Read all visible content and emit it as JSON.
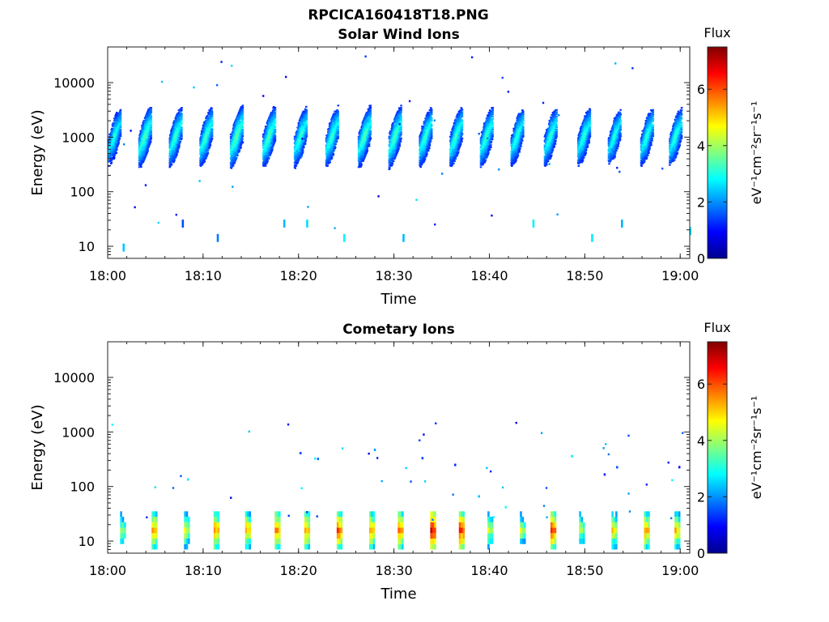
{
  "figure_title": "RPCICA160418T18.PNG",
  "colormap": [
    "#00008f",
    "#0000ff",
    "#0080ff",
    "#00ffff",
    "#80ff80",
    "#ffff00",
    "#ff8000",
    "#ff0000",
    "#800000"
  ],
  "chart_data": [
    {
      "type": "heatmap",
      "title": "Solar Wind Ions",
      "xlabel": "Time",
      "ylabel": "Energy (eV)",
      "x_scale": "time",
      "y_scale": "log",
      "xlim": [
        "18:00",
        "19:01"
      ],
      "ylim": [
        6,
        45000
      ],
      "x_ticks": [
        "18:00",
        "18:10",
        "18:20",
        "18:30",
        "18:40",
        "18:50",
        "19:00"
      ],
      "y_ticks": [
        10,
        100,
        1000,
        10000
      ],
      "y_tick_labels": [
        "10",
        "100",
        "1000",
        "10000"
      ],
      "colorbar": {
        "title": "Flux",
        "label": "eV⁻¹cm⁻²sr⁻¹s⁻¹",
        "range": [
          0,
          7.5
        ],
        "ticks": [
          0,
          2,
          4,
          6
        ]
      },
      "peaks": [
        {
          "t": 0.6,
          "flux": 3.2
        },
        {
          "t": 3.8,
          "flux": 3.5
        },
        {
          "t": 7.0,
          "flux": 3.4
        },
        {
          "t": 10.2,
          "flux": 3.4
        },
        {
          "t": 13.4,
          "flux": 3.6
        },
        {
          "t": 16.8,
          "flux": 3.5
        },
        {
          "t": 20.1,
          "flux": 3.4
        },
        {
          "t": 23.4,
          "flux": 3.4
        },
        {
          "t": 26.8,
          "flux": 3.5
        },
        {
          "t": 30.0,
          "flux": 3.5
        },
        {
          "t": 33.2,
          "flux": 3.4
        },
        {
          "t": 36.4,
          "flux": 3.4
        },
        {
          "t": 39.6,
          "flux": 3.4
        },
        {
          "t": 42.8,
          "flux": 3.3
        },
        {
          "t": 46.3,
          "flux": 3.3
        },
        {
          "t": 49.8,
          "flux": 3.3
        },
        {
          "t": 53.0,
          "flux": 3.2
        },
        {
          "t": 56.4,
          "flux": 3.3
        },
        {
          "t": 59.4,
          "flux": 3.3
        }
      ]
    },
    {
      "type": "heatmap",
      "title": "Cometary Ions",
      "xlabel": "Time",
      "ylabel": "Energy (eV)",
      "x_scale": "time",
      "y_scale": "log",
      "xlim": [
        "18:00",
        "19:01"
      ],
      "ylim": [
        6,
        45000
      ],
      "x_ticks": [
        "18:00",
        "18:10",
        "18:20",
        "18:30",
        "18:40",
        "18:50",
        "19:00"
      ],
      "y_ticks": [
        10,
        100,
        1000,
        10000
      ],
      "y_tick_labels": [
        "10",
        "100",
        "1000",
        "10000"
      ],
      "colorbar": {
        "title": "Flux",
        "label": "eV⁻¹cm⁻²sr⁻¹s⁻¹",
        "range": [
          0,
          7.5
        ],
        "ticks": [
          0,
          2,
          4,
          6
        ]
      },
      "peaks": [
        {
          "t": 1.5,
          "flux": 4.2
        },
        {
          "t": 4.8,
          "flux": 5.6
        },
        {
          "t": 8.2,
          "flux": 4.8
        },
        {
          "t": 11.3,
          "flux": 5.6
        },
        {
          "t": 14.6,
          "flux": 5.4
        },
        {
          "t": 17.7,
          "flux": 5.8
        },
        {
          "t": 20.8,
          "flux": 5.6
        },
        {
          "t": 24.2,
          "flux": 6.0
        },
        {
          "t": 27.6,
          "flux": 5.6
        },
        {
          "t": 30.6,
          "flux": 5.8
        },
        {
          "t": 34.0,
          "flux": 6.8
        },
        {
          "t": 37.0,
          "flux": 6.4
        },
        {
          "t": 40.0,
          "flux": 4.6
        },
        {
          "t": 43.4,
          "flux": 4.4
        },
        {
          "t": 46.6,
          "flux": 6.2
        },
        {
          "t": 49.6,
          "flux": 4.4
        },
        {
          "t": 53.0,
          "flux": 5.0
        },
        {
          "t": 56.4,
          "flux": 5.6
        },
        {
          "t": 59.6,
          "flux": 5.2
        }
      ]
    }
  ]
}
